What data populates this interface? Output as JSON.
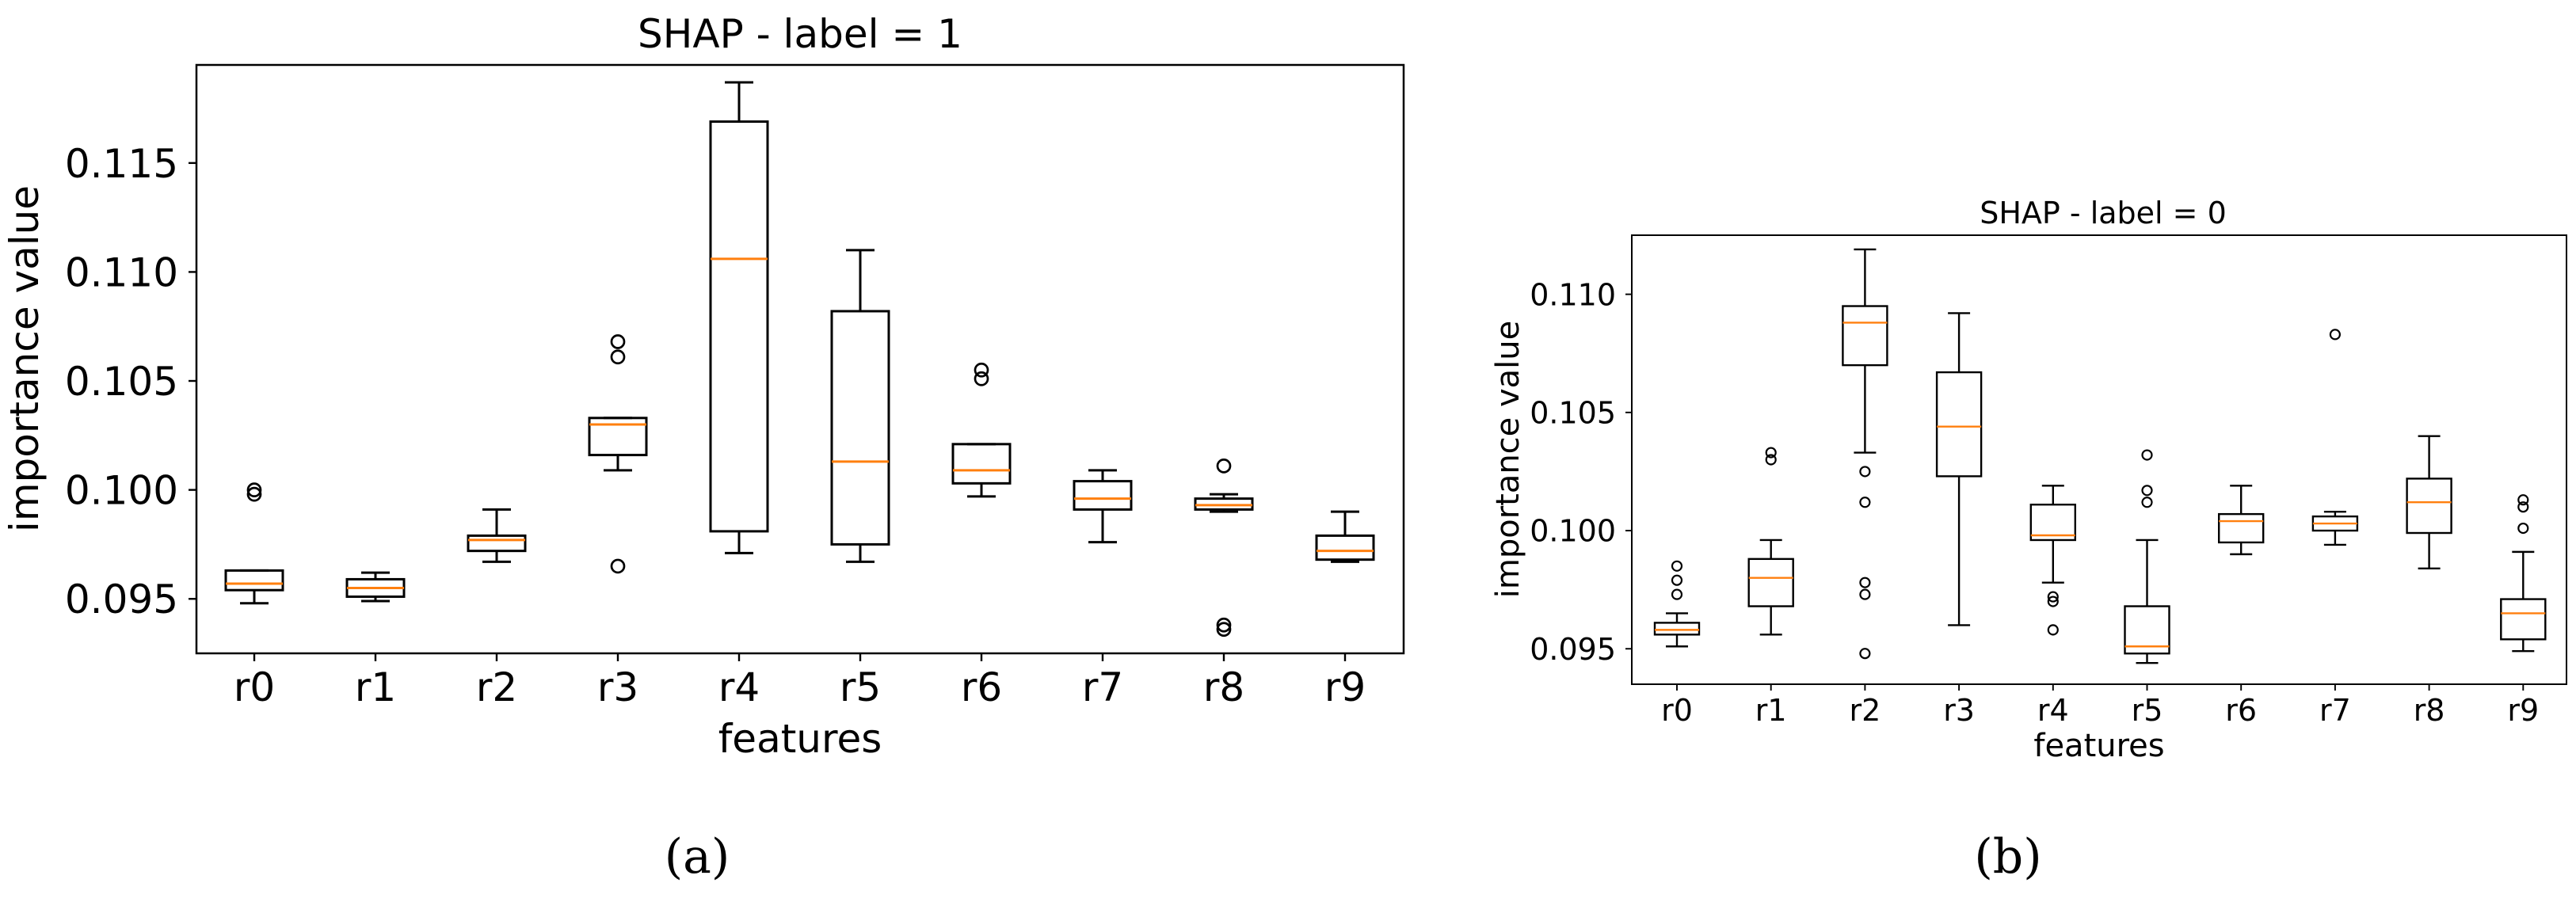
{
  "chart_data": [
    {
      "type": "boxplot",
      "title": "SHAP - label = 1",
      "xlabel": "features",
      "ylabel": "importance value",
      "caption": "(a)",
      "categories": [
        "r0",
        "r1",
        "r2",
        "r3",
        "r4",
        "r5",
        "r6",
        "r7",
        "r8",
        "r9"
      ],
      "ylim": [
        0.0925,
        0.1195
      ],
      "yticks": [
        "0.095",
        "0.100",
        "0.105",
        "0.110",
        "0.115"
      ],
      "grid": false,
      "boxes": [
        {
          "whislo": 0.0948,
          "q1": 0.0954,
          "med": 0.0957,
          "q3": 0.0963,
          "whishi": 0.0963,
          "fliers": [
            0.0998,
            0.1
          ]
        },
        {
          "whislo": 0.0949,
          "q1": 0.0951,
          "med": 0.0955,
          "q3": 0.0959,
          "whishi": 0.0962,
          "fliers": []
        },
        {
          "whislo": 0.0967,
          "q1": 0.0972,
          "med": 0.0977,
          "q3": 0.0979,
          "whishi": 0.0991,
          "fliers": []
        },
        {
          "whislo": 0.1009,
          "q1": 0.1016,
          "med": 0.103,
          "q3": 0.1033,
          "whishi": 0.1033,
          "fliers": [
            0.0965,
            0.1061,
            0.1068
          ]
        },
        {
          "whislo": 0.0971,
          "q1": 0.0981,
          "med": 0.1106,
          "q3": 0.1169,
          "whishi": 0.1187,
          "fliers": []
        },
        {
          "whislo": 0.0967,
          "q1": 0.0975,
          "med": 0.1013,
          "q3": 0.1082,
          "whishi": 0.111,
          "fliers": []
        },
        {
          "whislo": 0.0997,
          "q1": 0.1003,
          "med": 0.1009,
          "q3": 0.1021,
          "whishi": 0.1021,
          "fliers": [
            0.1051,
            0.1055
          ]
        },
        {
          "whislo": 0.0976,
          "q1": 0.0991,
          "med": 0.0996,
          "q3": 0.1004,
          "whishi": 0.1009,
          "fliers": []
        },
        {
          "whislo": 0.099,
          "q1": 0.0991,
          "med": 0.0993,
          "q3": 0.0996,
          "whishi": 0.0998,
          "fliers": [
            0.0936,
            0.0938,
            0.1011
          ]
        },
        {
          "whislo": 0.0967,
          "q1": 0.0968,
          "med": 0.0972,
          "q3": 0.0979,
          "whishi": 0.099,
          "fliers": []
        }
      ]
    },
    {
      "type": "boxplot",
      "title": "SHAP - label = 0",
      "xlabel": "features",
      "ylabel": "importance value",
      "caption": "(b)",
      "categories": [
        "r0",
        "r1",
        "r2",
        "r3",
        "r4",
        "r5",
        "r6",
        "r7",
        "r8",
        "r9"
      ],
      "ylim": [
        0.0935,
        0.1125
      ],
      "yticks": [
        "0.095",
        "0.100",
        "0.105",
        "0.110"
      ],
      "grid": false,
      "boxes": [
        {
          "whislo": 0.0951,
          "q1": 0.0956,
          "med": 0.0958,
          "q3": 0.0961,
          "whishi": 0.0965,
          "fliers": [
            0.0973,
            0.0979,
            0.0985
          ]
        },
        {
          "whislo": 0.0956,
          "q1": 0.0968,
          "med": 0.098,
          "q3": 0.0988,
          "whishi": 0.0996,
          "fliers": [
            0.103,
            0.1033
          ]
        },
        {
          "whislo": 0.1033,
          "q1": 0.107,
          "med": 0.1088,
          "q3": 0.1095,
          "whishi": 0.1119,
          "fliers": [
            0.0948,
            0.0973,
            0.0978,
            0.1012,
            0.1025
          ]
        },
        {
          "whislo": 0.096,
          "q1": 0.1023,
          "med": 0.1044,
          "q3": 0.1067,
          "whishi": 0.1092,
          "fliers": []
        },
        {
          "whislo": 0.0978,
          "q1": 0.0996,
          "med": 0.0998,
          "q3": 0.1011,
          "whishi": 0.1019,
          "fliers": [
            0.0958,
            0.097,
            0.0972
          ]
        },
        {
          "whislo": 0.0944,
          "q1": 0.0948,
          "med": 0.0951,
          "q3": 0.0968,
          "whishi": 0.0996,
          "fliers": [
            0.1012,
            0.1017,
            0.1032
          ]
        },
        {
          "whislo": 0.099,
          "q1": 0.0995,
          "med": 0.1004,
          "q3": 0.1007,
          "whishi": 0.1019,
          "fliers": []
        },
        {
          "whislo": 0.0994,
          "q1": 0.1,
          "med": 0.1003,
          "q3": 0.1006,
          "whishi": 0.1008,
          "fliers": [
            0.1083
          ]
        },
        {
          "whislo": 0.0984,
          "q1": 0.0999,
          "med": 0.1012,
          "q3": 0.1022,
          "whishi": 0.104,
          "fliers": []
        },
        {
          "whislo": 0.0949,
          "q1": 0.0954,
          "med": 0.0965,
          "q3": 0.0971,
          "whishi": 0.0991,
          "fliers": [
            0.1001,
            0.101,
            0.1013
          ]
        }
      ]
    }
  ],
  "colors": {
    "median": "#ff7f0e",
    "box": "#000000"
  }
}
